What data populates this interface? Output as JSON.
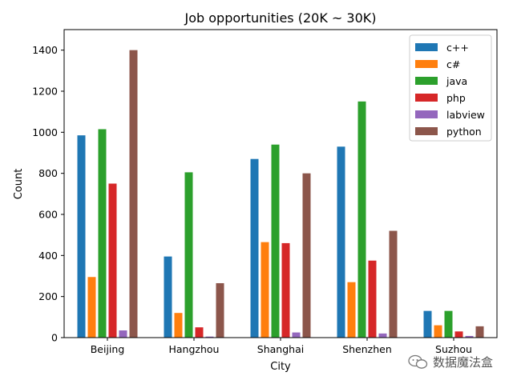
{
  "chart_data": {
    "type": "bar",
    "title": "Job opportunities (20K ~ 30K)",
    "xlabel": "City",
    "ylabel": "Count",
    "categories": [
      "Beijing",
      "Hangzhou",
      "Shanghai",
      "Shenzhen",
      "Suzhou"
    ],
    "ylim": [
      0,
      1500
    ],
    "yticks": [
      0,
      200,
      400,
      600,
      800,
      1000,
      1200,
      1400
    ],
    "grid": false,
    "legend_position": "top-right",
    "series": [
      {
        "name": "c++",
        "color": "#1f77b4",
        "values": [
          985,
          395,
          870,
          930,
          130
        ]
      },
      {
        "name": "c#",
        "color": "#ff7f0e",
        "values": [
          295,
          120,
          465,
          270,
          60
        ]
      },
      {
        "name": "java",
        "color": "#2ca02c",
        "values": [
          1015,
          805,
          940,
          1150,
          130
        ]
      },
      {
        "name": "php",
        "color": "#d62728",
        "values": [
          750,
          50,
          460,
          375,
          30
        ]
      },
      {
        "name": "labview",
        "color": "#9467bd",
        "values": [
          35,
          5,
          25,
          20,
          8
        ]
      },
      {
        "name": "python",
        "color": "#8c564b",
        "values": [
          1400,
          265,
          800,
          520,
          55
        ]
      }
    ]
  },
  "watermark": {
    "text": "数据魔法盒",
    "icon": "wechat-icon"
  }
}
